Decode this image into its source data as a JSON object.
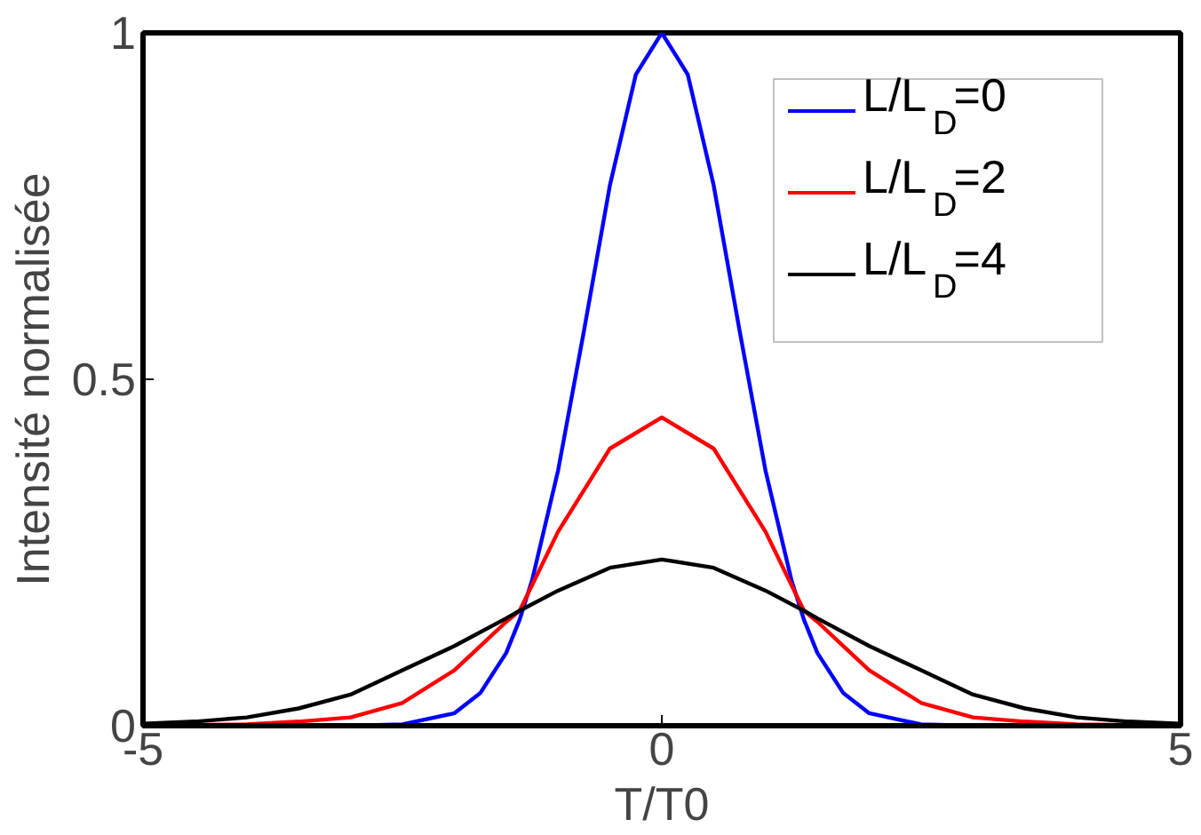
{
  "chart_data": {
    "type": "line",
    "xlabel": "T/T0",
    "ylabel": "Intensité normalisée",
    "xlim": [
      -5,
      5
    ],
    "ylim": [
      0,
      1
    ],
    "xticks": [
      -5,
      0,
      5
    ],
    "yticks": [
      0,
      0.5,
      1
    ],
    "grid": false,
    "legend": "top right",
    "marker": "none",
    "line_style": "solid",
    "series": [
      {
        "name": "L/L$_{D}$=0",
        "color": "#0000ff",
        "x": [
          -5,
          -3,
          -2.5,
          -2,
          -1.75,
          -1.5,
          -1.37,
          -1.25,
          -1,
          -0.75,
          -0.5,
          -0.25,
          0,
          0.25,
          0.5,
          0.75,
          1,
          1.25,
          1.37,
          1.5,
          1.75,
          2,
          2.5,
          3,
          5
        ],
        "values": [
          0,
          0,
          0.002,
          0.018,
          0.047,
          0.105,
          0.153,
          0.21,
          0.368,
          0.57,
          0.78,
          0.94,
          1,
          0.94,
          0.78,
          0.57,
          0.368,
          0.21,
          0.153,
          0.105,
          0.047,
          0.018,
          0.002,
          0,
          0
        ]
      },
      {
        "name": "L/L$_{D}$=2",
        "color": "#ff0000",
        "x": [
          -5,
          -4,
          -3.5,
          -3,
          -2.5,
          -2,
          -1.75,
          -1.5,
          -1.37,
          -1,
          -0.5,
          0,
          0.5,
          1,
          1.37,
          1.5,
          1.75,
          2,
          2.5,
          3,
          3.5,
          4,
          5
        ],
        "values": [
          0,
          0.002,
          0.006,
          0.012,
          0.033,
          0.08,
          0.115,
          0.15,
          0.166,
          0.28,
          0.4,
          0.445,
          0.4,
          0.28,
          0.166,
          0.15,
          0.115,
          0.08,
          0.033,
          0.012,
          0.006,
          0.002,
          0
        ]
      },
      {
        "name": "L/L$_{D}$=4",
        "color": "#000000",
        "x": [
          -5,
          -4.5,
          -4,
          -3.5,
          -3,
          -2.5,
          -2,
          -1.5,
          -1.37,
          -1,
          -0.5,
          0,
          0.5,
          1,
          1.37,
          1.5,
          2,
          2.5,
          3,
          3.5,
          4,
          4.5,
          5
        ],
        "values": [
          0.003,
          0.006,
          0.012,
          0.025,
          0.045,
          0.08,
          0.115,
          0.155,
          0.166,
          0.195,
          0.228,
          0.24,
          0.228,
          0.195,
          0.166,
          0.155,
          0.115,
          0.08,
          0.045,
          0.025,
          0.012,
          0.006,
          0.003
        ]
      }
    ]
  }
}
